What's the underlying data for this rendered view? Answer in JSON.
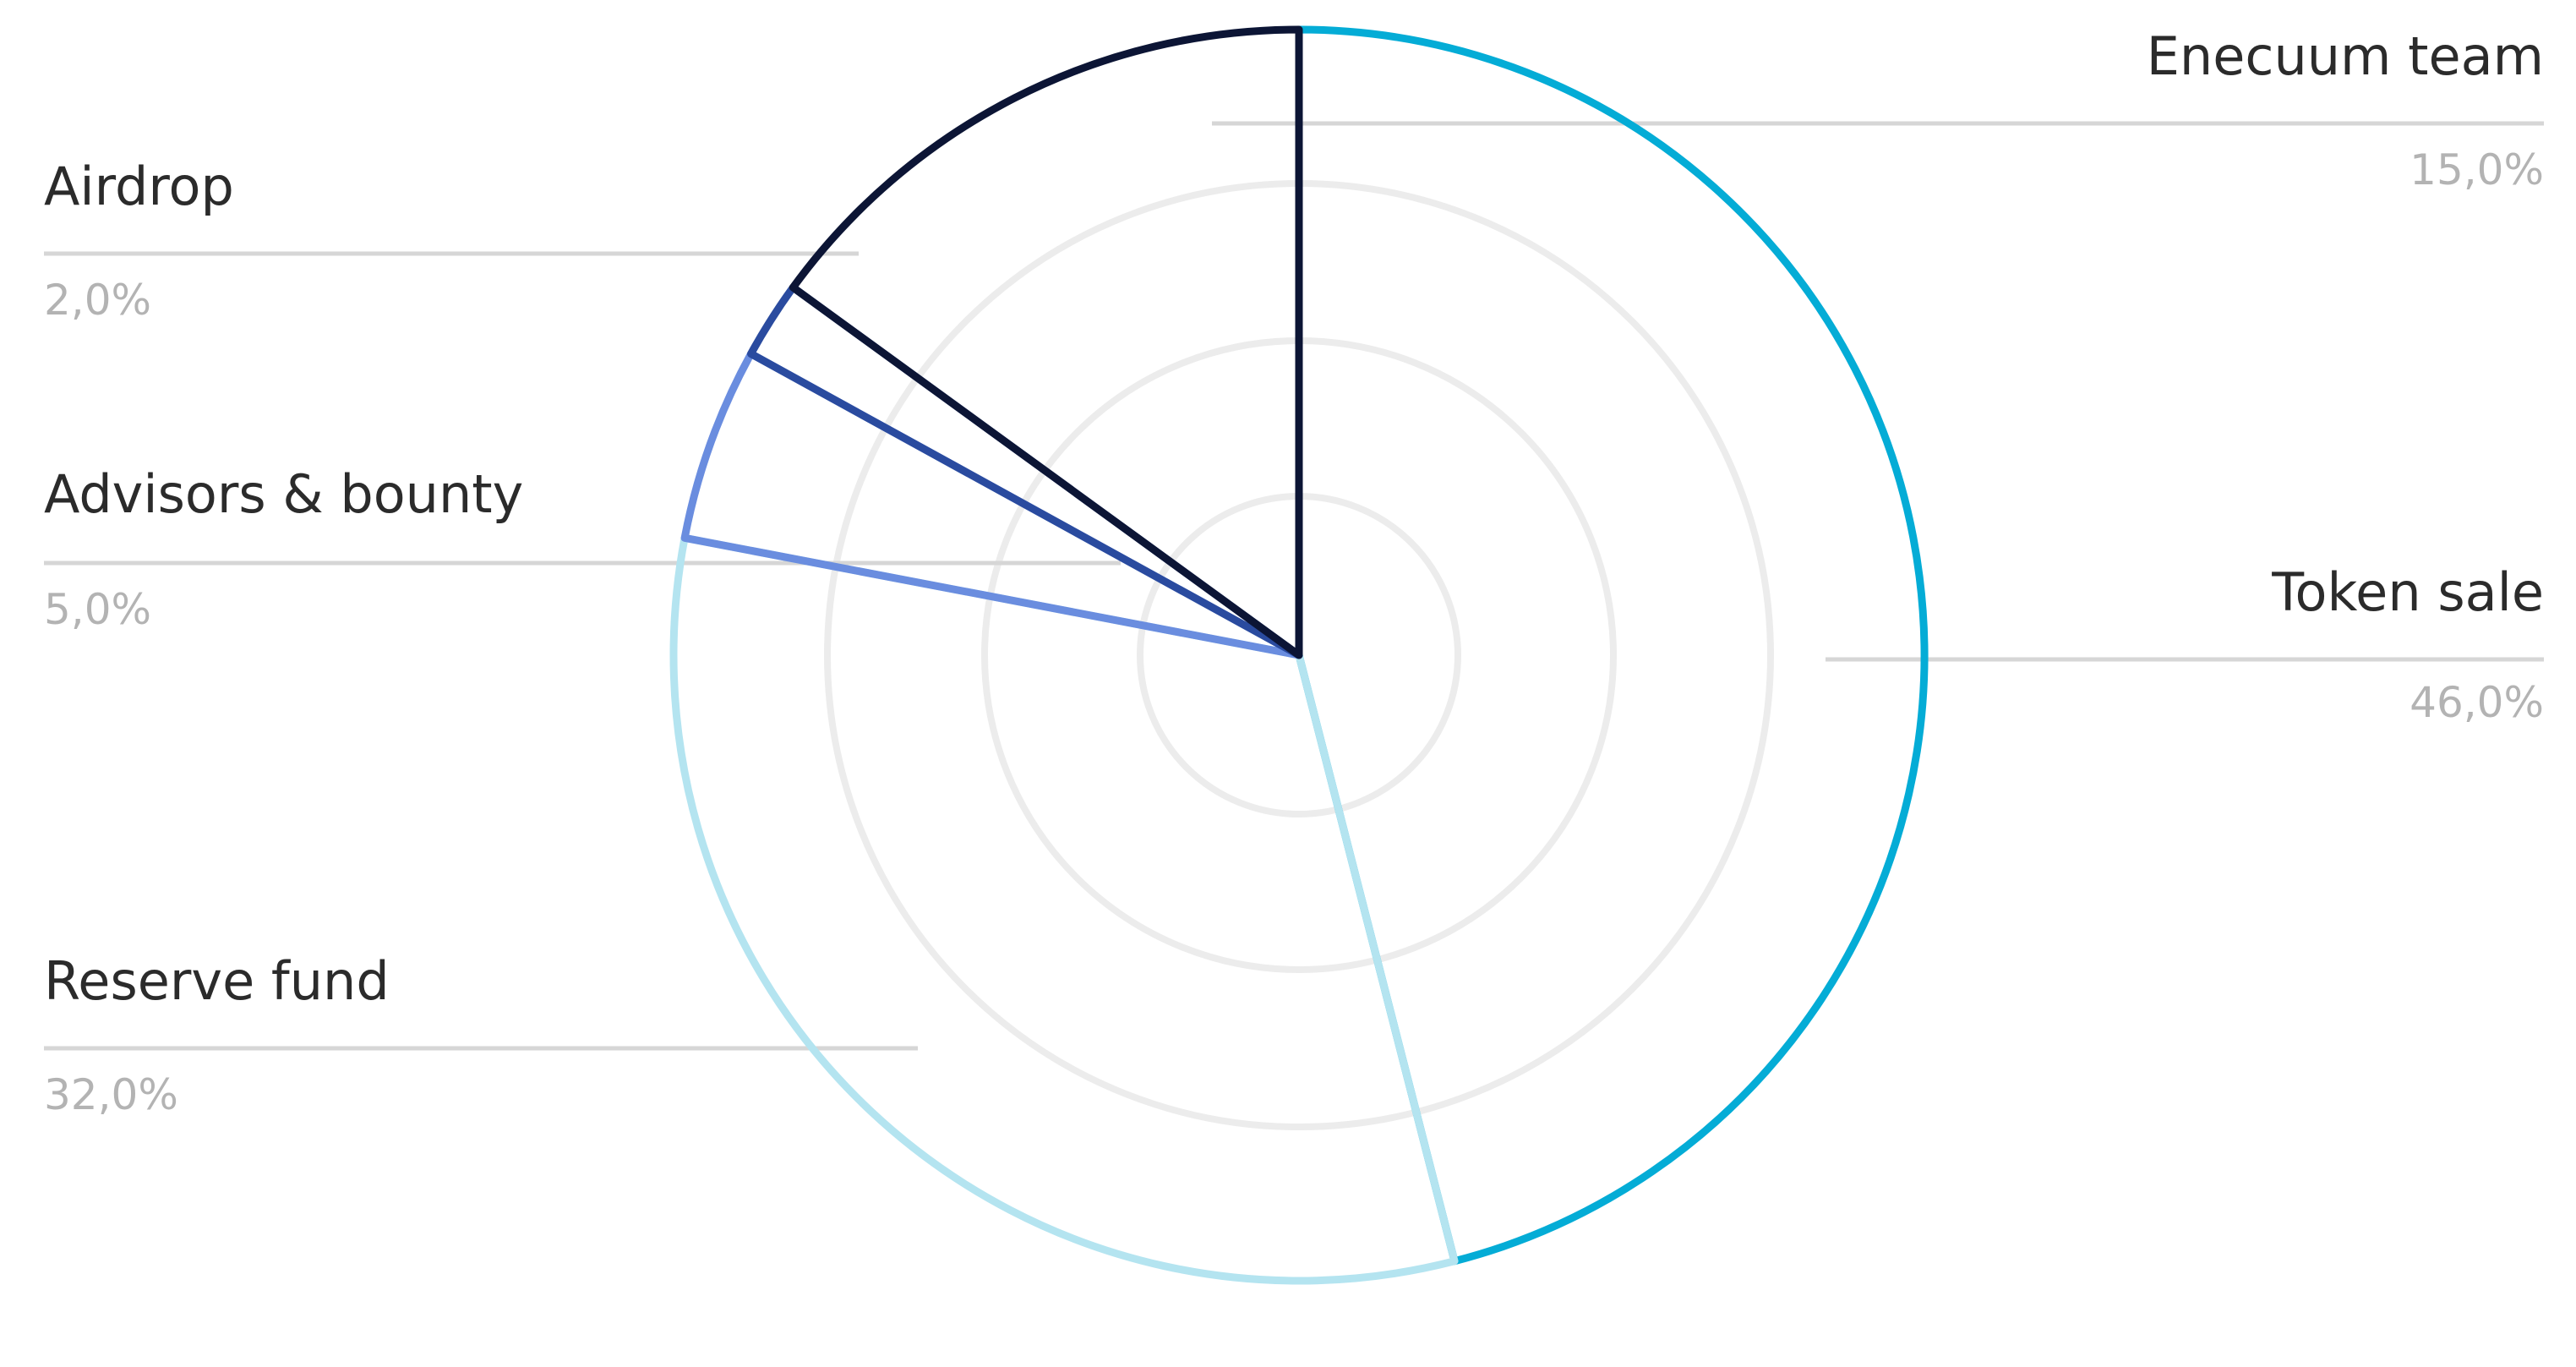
{
  "chart_data": {
    "type": "pie",
    "style": "outline",
    "grid": "concentric-circles",
    "slices": [
      {
        "label": "Token sale",
        "value": 46.0,
        "value_text": "46,0%",
        "color": "#04acd6",
        "label_side": "right"
      },
      {
        "label": "Reserve fund",
        "value": 32.0,
        "value_text": "32,0%",
        "color": "#b4e4f0",
        "label_side": "left"
      },
      {
        "label": "Advisors & bounty",
        "value": 5.0,
        "value_text": "5,0%",
        "color": "#6a8ddf",
        "label_side": "left"
      },
      {
        "label": "Airdrop",
        "value": 2.0,
        "value_text": "2,0%",
        "color": "#2a4b9f",
        "label_side": "left"
      },
      {
        "label": "Enecuum team",
        "value": 15.0,
        "value_text": "15,0%",
        "color": "#0c1535",
        "label_side": "right"
      }
    ]
  }
}
